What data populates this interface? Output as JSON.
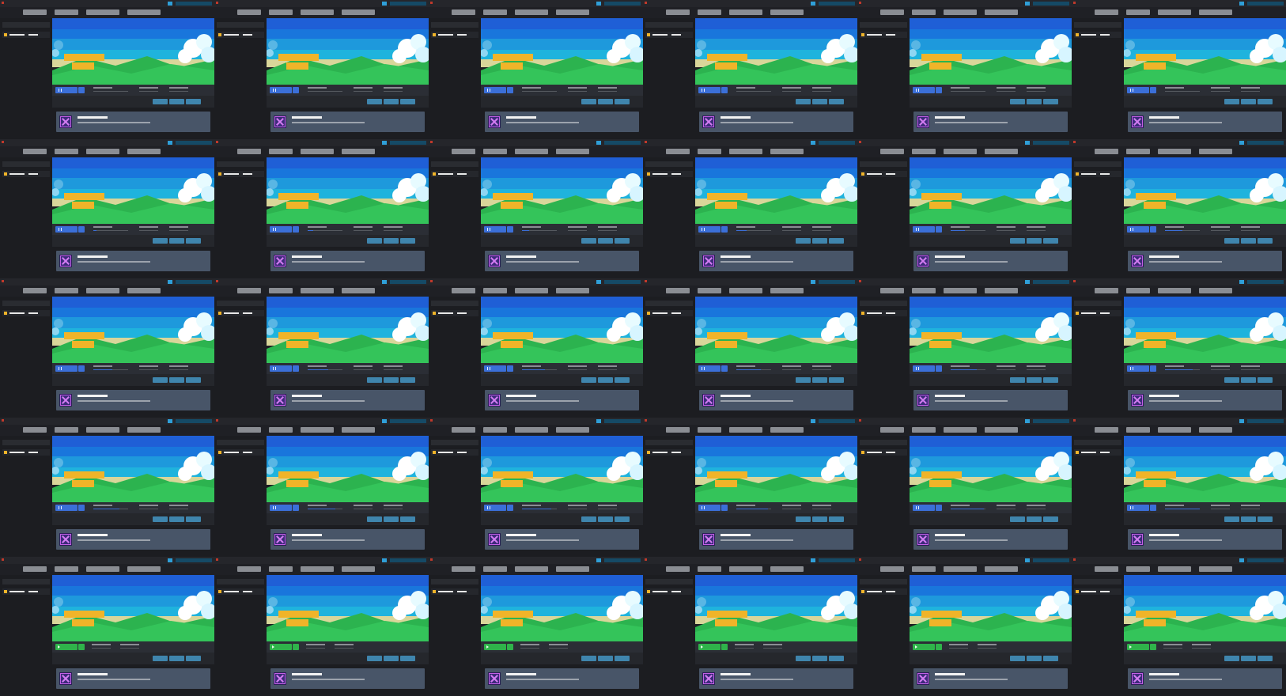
{
  "screen": {
    "layout": "grid",
    "rows": 5,
    "columns": 6
  },
  "colors": {
    "background": "#1b1c20",
    "accent_blue": "#3b6fd8",
    "accent_green": "#2fb34a",
    "logo_yellow": "#f0b429",
    "link_blue": "#3f85ad",
    "achievement_card": "#485568",
    "sky_top": "#1f5fd6",
    "sky_mid": "#1ea9dd",
    "grass": "#34c45a"
  },
  "icons": {
    "window_close": "close-dot-icon",
    "download": "download-icon",
    "game": "game-icon",
    "pause": "pause-icon",
    "play": "play-icon",
    "stop": "stop-icon",
    "achievement": "achievement-icon"
  },
  "tiles_state": [
    [
      "running",
      "running",
      "running",
      "running",
      "running",
      "running"
    ],
    [
      "running",
      "running",
      "running",
      "running",
      "running",
      "running"
    ],
    [
      "running",
      "running",
      "running",
      "running",
      "running",
      "running"
    ],
    [
      "running",
      "running",
      "running",
      "running",
      "running",
      "running"
    ],
    [
      "stopped",
      "stopped",
      "stopped",
      "stopped",
      "stopped",
      "stopped"
    ]
  ],
  "progress_fraction": [
    [
      0.0,
      0.0,
      0.0,
      0.0,
      0.0,
      0.0
    ],
    [
      0.1,
      0.15,
      0.2,
      0.3,
      0.4,
      0.5
    ],
    [
      0.55,
      0.6,
      0.65,
      0.7,
      0.75,
      0.8
    ],
    [
      0.75,
      0.8,
      0.85,
      0.9,
      0.95,
      1.0
    ],
    [
      0.0,
      0.0,
      0.0,
      0.0,
      0.0,
      0.0
    ]
  ],
  "download_fraction": [
    [
      0.0,
      0.0,
      0.0,
      0.0,
      0.0,
      0.0
    ],
    [
      0.0,
      0.0,
      0.0,
      0.0,
      0.0,
      0.0
    ],
    [
      0.0,
      0.0,
      0.0,
      0.0,
      0.0,
      0.0
    ],
    [
      0.0,
      0.0,
      0.0,
      0.0,
      0.0,
      0.0
    ],
    [
      0.0,
      0.0,
      0.0,
      0.0,
      0.0,
      0.0
    ]
  ]
}
